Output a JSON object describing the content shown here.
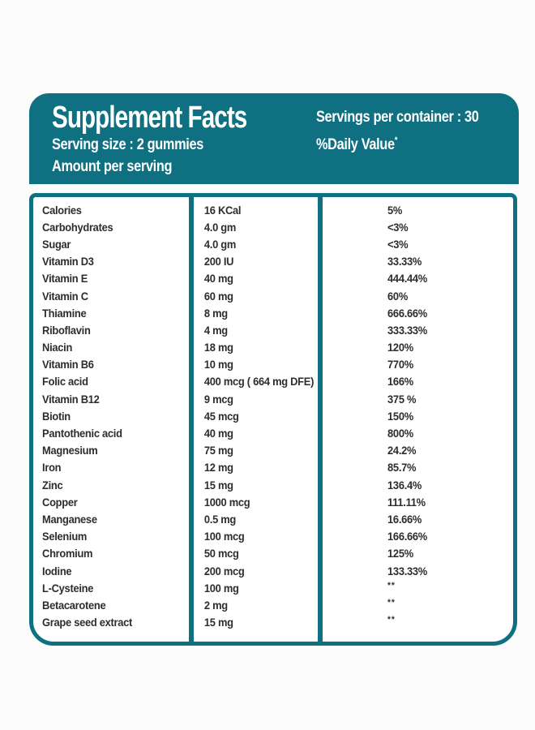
{
  "colors": {
    "teal": "#0e7080",
    "text": "#2d2d2d",
    "background": "#fcfcfc",
    "header_text": "#ffffff"
  },
  "header": {
    "title": "Supplement Facts",
    "serving_size": "Serving size : 2 gummies",
    "amount_per_serving": "Amount per serving",
    "servings_per_container": "Servings per container : 30",
    "daily_value_label": "%Daily Value",
    "daily_value_superscript": "*"
  },
  "table": {
    "rows": [
      {
        "nutrient": "Calories",
        "amount": "16 KCal",
        "daily_value": "5%"
      },
      {
        "nutrient": "Carbohydrates",
        "amount": "4.0 gm",
        "daily_value": "<3%"
      },
      {
        "nutrient": "Sugar",
        "amount": "4.0 gm",
        "daily_value": "<3%"
      },
      {
        "nutrient": "Vitamin D3",
        "amount": "200 IU",
        "daily_value": "33.33%"
      },
      {
        "nutrient": "Vitamin E",
        "amount": "40 mg",
        "daily_value": "444.44%"
      },
      {
        "nutrient": "Vitamin C",
        "amount": "60 mg",
        "daily_value": "60%"
      },
      {
        "nutrient": "Thiamine",
        "amount": "8 mg",
        "daily_value": "666.66%"
      },
      {
        "nutrient": "Riboflavin",
        "amount": "4 mg",
        "daily_value": "333.33%"
      },
      {
        "nutrient": "Niacin",
        "amount": "18 mg",
        "daily_value": "120%"
      },
      {
        "nutrient": "Vitamin B6",
        "amount": "10 mg",
        "daily_value": "770%"
      },
      {
        "nutrient": "Folic acid",
        "amount": "400 mcg ( 664 mg DFE)",
        "daily_value": "166%"
      },
      {
        "nutrient": "Vitamin B12",
        "amount": "9 mcg",
        "daily_value": "375 %"
      },
      {
        "nutrient": "Biotin",
        "amount": "45 mcg",
        "daily_value": "150%"
      },
      {
        "nutrient": "Pantothenic acid",
        "amount": "40 mg",
        "daily_value": "800%"
      },
      {
        "nutrient": "Magnesium",
        "amount": "75 mg",
        "daily_value": "24.2%"
      },
      {
        "nutrient": "Iron",
        "amount": "12 mg",
        "daily_value": "85.7%"
      },
      {
        "nutrient": "Zinc",
        "amount": "15 mg",
        "daily_value": "136.4%"
      },
      {
        "nutrient": "Copper",
        "amount": "1000 mcg",
        "daily_value": "111.11%"
      },
      {
        "nutrient": "Manganese",
        "amount": "0.5 mg",
        "daily_value": "16.66%"
      },
      {
        "nutrient": "Selenium",
        "amount": "100 mcg",
        "daily_value": "166.66%"
      },
      {
        "nutrient": "Chromium",
        "amount": "50 mcg",
        "daily_value": "125%"
      },
      {
        "nutrient": "Iodine",
        "amount": "200 mcg",
        "daily_value": "133.33%"
      },
      {
        "nutrient": "L-Cysteine",
        "amount": "100 mg",
        "daily_value": "**"
      },
      {
        "nutrient": "Betacarotene",
        "amount": "2 mg",
        "daily_value": "**"
      },
      {
        "nutrient": "Grape seed extract",
        "amount": "15 mg",
        "daily_value": "**"
      }
    ]
  }
}
